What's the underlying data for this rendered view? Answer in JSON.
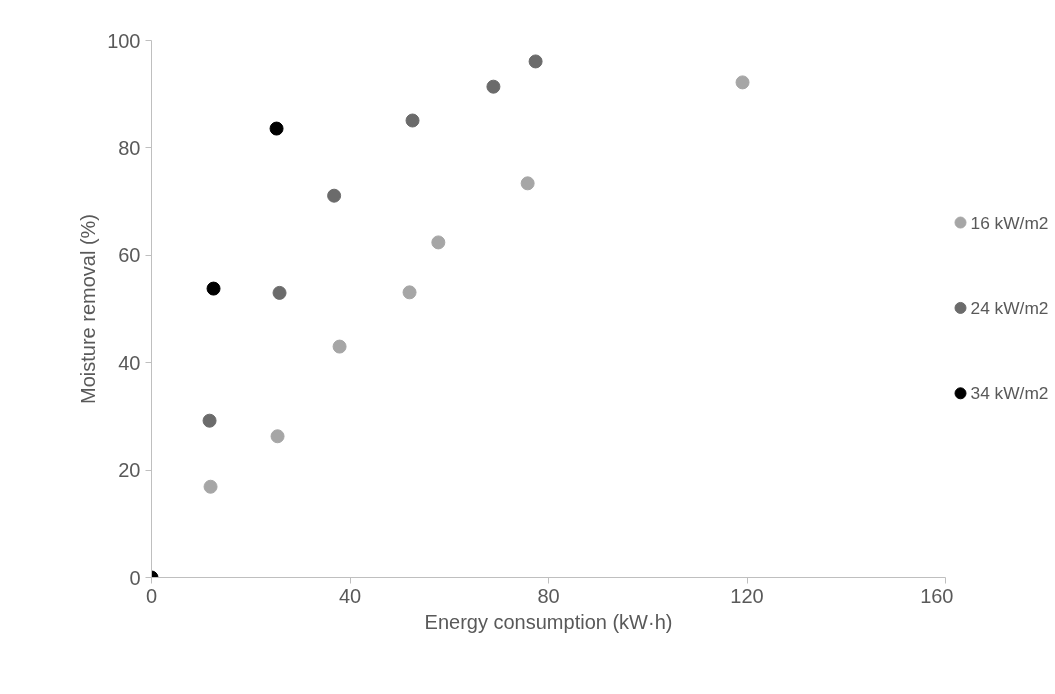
{
  "chart_data": {
    "type": "scatter",
    "xlabel": "Energy consumption (kW·h)",
    "ylabel": "Moisture removal (%)",
    "xlim": [
      0,
      160
    ],
    "xticks": [
      0,
      40,
      80,
      120,
      160
    ],
    "ylim": [
      0,
      100
    ],
    "yticks": [
      0,
      20,
      40,
      60,
      80,
      100
    ],
    "grid": false,
    "legend": "right",
    "marker": "circle",
    "series": [
      {
        "name": "16 kW/m2",
        "color": "#a6a6a6",
        "x": [
          11.9,
          25.4,
          37.9,
          52.0,
          57.8,
          75.8,
          119.1
        ],
        "values": [
          16.9,
          26.3,
          43.0,
          53.1,
          62.4,
          73.4,
          92.2
        ]
      },
      {
        "name": "24 kW/m2",
        "color": "#6b6b6b",
        "x": [
          11.7,
          25.8,
          36.8,
          52.6,
          68.9,
          77.4
        ],
        "values": [
          29.2,
          53.0,
          71.1,
          85.1,
          91.4,
          96.1
        ]
      },
      {
        "name": "34 kW/m2",
        "color": "#000000",
        "x": [
          0,
          12.5,
          25.2
        ],
        "values": [
          0,
          53.8,
          83.6
        ]
      }
    ]
  }
}
